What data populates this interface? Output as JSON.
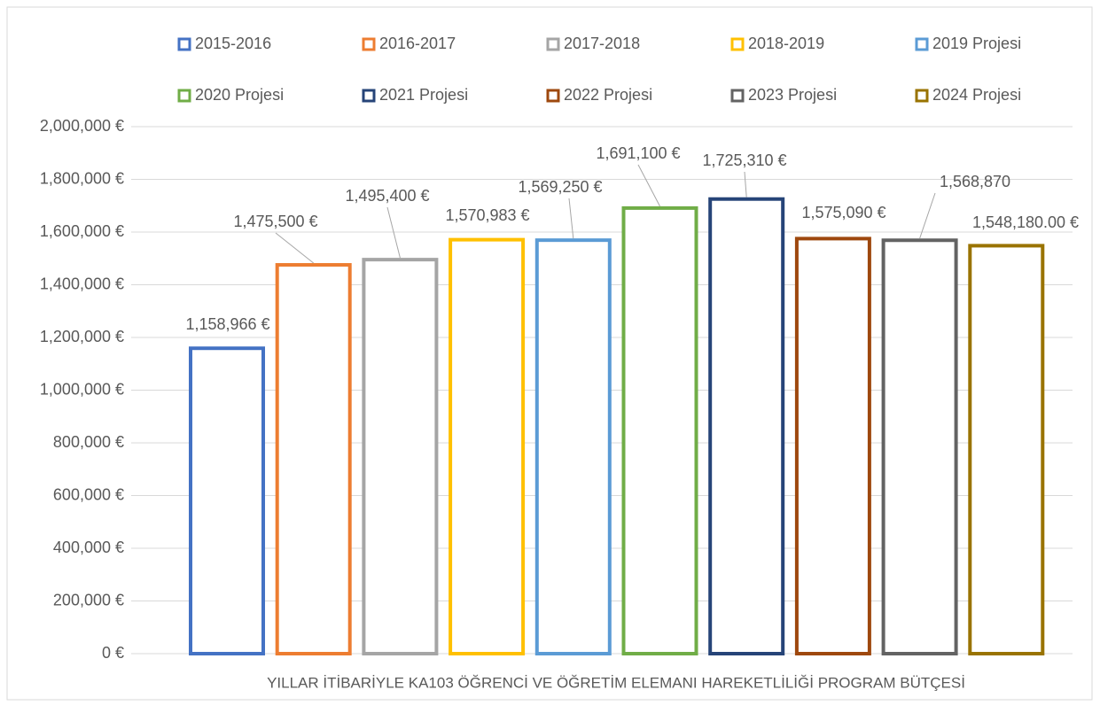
{
  "chart_data": {
    "type": "bar",
    "categories": [
      "YILLAR İTİBARİYLE KA103 ÖĞRENCİ VE ÖĞRETİM ELEMANI HAREKETLİLİĞİ PROGRAM BÜTÇESİ"
    ],
    "series": [
      {
        "name": "2015-2016",
        "color": "#4472c4",
        "values": [
          1158966
        ],
        "value_labels": [
          "1,158,966 €"
        ]
      },
      {
        "name": "2016-2017",
        "color": "#ed7d31",
        "values": [
          1475500
        ],
        "value_labels": [
          "1,475,500 €"
        ]
      },
      {
        "name": "2017-2018",
        "color": "#a5a5a5",
        "values": [
          1495400
        ],
        "value_labels": [
          "1,495,400 €"
        ]
      },
      {
        "name": "2018-2019",
        "color": "#ffc000",
        "values": [
          1570983
        ],
        "value_labels": [
          "1,570,983 €"
        ]
      },
      {
        "name": "2019 Projesi",
        "color": "#5b9bd5",
        "values": [
          1569250
        ],
        "value_labels": [
          "1,569,250 €"
        ]
      },
      {
        "name": "2020 Projesi",
        "color": "#70ad47",
        "values": [
          1691100
        ],
        "value_labels": [
          "1,691,100 €"
        ]
      },
      {
        "name": "2021 Projesi",
        "color": "#264478",
        "values": [
          1725310
        ],
        "value_labels": [
          "1,725,310 €"
        ]
      },
      {
        "name": "2022 Projesi",
        "color": "#9e480e",
        "values": [
          1575090
        ],
        "value_labels": [
          "1,575,090 €"
        ]
      },
      {
        "name": "2023 Projesi",
        "color": "#636363",
        "values": [
          1568870
        ],
        "value_labels": [
          "1,568,870"
        ]
      },
      {
        "name": "2024 Projesi",
        "color": "#997300",
        "values": [
          1548180
        ],
        "value_labels": [
          "1,548,180.00 €"
        ]
      }
    ],
    "ylim": [
      0,
      2000000
    ],
    "yticks": [
      {
        "value": 0,
        "label": "0 €"
      },
      {
        "value": 200000,
        "label": "200,000 €"
      },
      {
        "value": 400000,
        "label": "400,000 €"
      },
      {
        "value": 600000,
        "label": "600,000 €"
      },
      {
        "value": 800000,
        "label": "800,000 €"
      },
      {
        "value": 1000000,
        "label": "1,000,000 €"
      },
      {
        "value": 1200000,
        "label": "1,200,000 €"
      },
      {
        "value": 1400000,
        "label": "1,400,000 €"
      },
      {
        "value": 1600000,
        "label": "1,600,000 €"
      },
      {
        "value": 1800000,
        "label": "1,800,000 €"
      },
      {
        "value": 2000000,
        "label": "2,000,000 €"
      }
    ],
    "grid": true,
    "legend": "top"
  }
}
